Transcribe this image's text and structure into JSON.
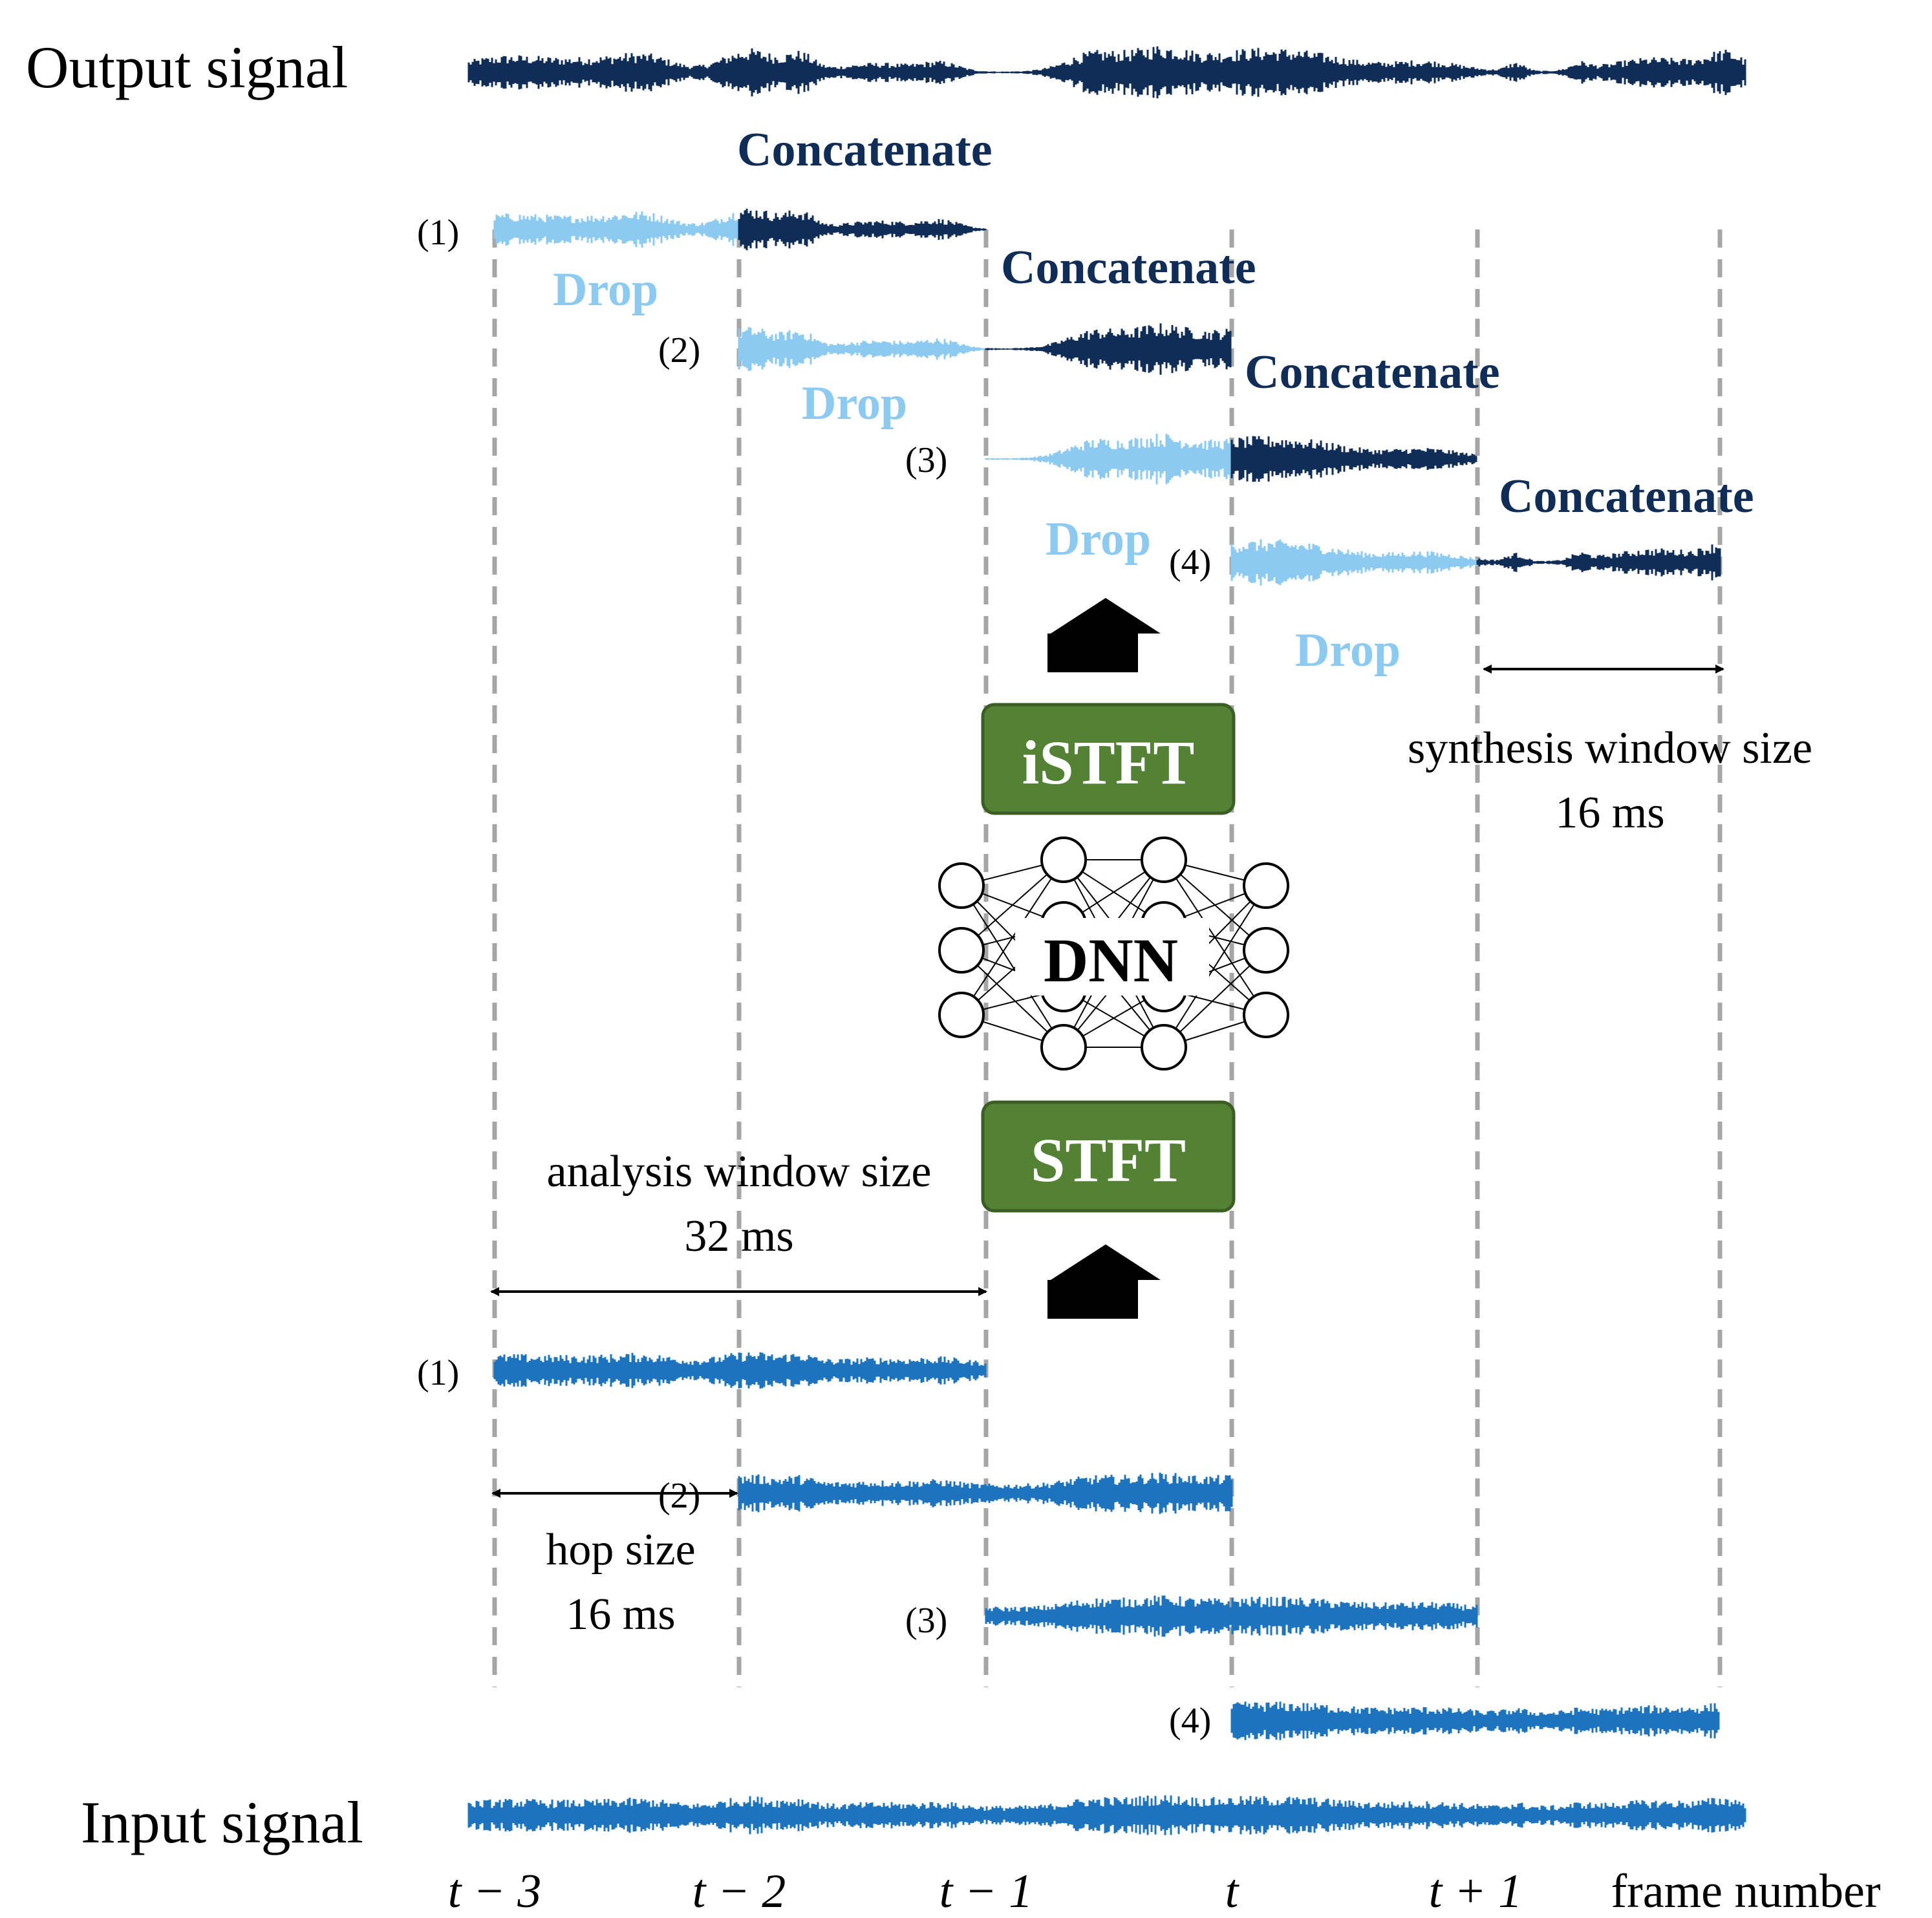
{
  "signals": {
    "output_label": "Output signal",
    "input_label": "Input signal"
  },
  "frames": {
    "labels": [
      "(1)",
      "(2)",
      "(3)",
      "(4)"
    ]
  },
  "actions": {
    "concatenate": "Concatenate",
    "drop": "Drop"
  },
  "blocks": {
    "istft": "iSTFT",
    "stft": "STFT",
    "dnn": "DNN"
  },
  "annotations": {
    "synthesis_title": "synthesis window size",
    "synthesis_value": "16 ms",
    "analysis_title": "analysis window size",
    "analysis_value": "32 ms",
    "hop_title": "hop size",
    "hop_value": "16 ms"
  },
  "axis": {
    "ticks": [
      "t − 3",
      "t − 2",
      "t − 1",
      "t",
      "t + 1"
    ],
    "label": "frame number"
  },
  "colors": {
    "output_dark": "#0f2d57",
    "drop_light": "#8ccaf2",
    "input_blue": "#1e73be",
    "block_green": "#548235",
    "block_border": "#3b5e24",
    "dashed_gray": "#a6a6a6"
  }
}
